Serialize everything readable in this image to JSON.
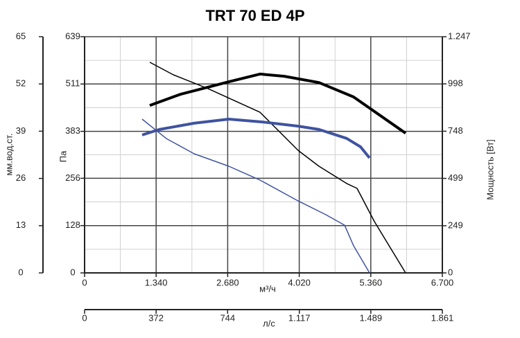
{
  "chart_data": {
    "type": "line",
    "title": "TRT 70 ED 4P",
    "xlabel": "м³/ч",
    "x2label": "л/с",
    "ylabel": "Па",
    "y2label": "Мощность [Вт]",
    "y3label": "мм.вод.ст.",
    "xlim": [
      0,
      6700
    ],
    "xticks": [
      0,
      {
        "value": 1340,
        "label": "1.340"
      },
      {
        "value": 2680,
        "label": "2.680"
      },
      {
        "value": 4020,
        "label": "4.020"
      },
      {
        "value": 5360,
        "label": "5.360"
      },
      {
        "value": 6700,
        "label": "6.700"
      }
    ],
    "x2lim": [
      0,
      1861
    ],
    "x2ticks": [
      0,
      372,
      744,
      {
        "value": 1117,
        "label": "1.117"
      },
      {
        "value": 1489,
        "label": "1.489"
      },
      {
        "value": 1861,
        "label": "1.861"
      }
    ],
    "ylim": [
      0,
      639
    ],
    "yticks": [
      0,
      128,
      256,
      383,
      511,
      639
    ],
    "y2lim": [
      0,
      1247
    ],
    "y2ticks": [
      0,
      249,
      499,
      748,
      998,
      {
        "value": 1247,
        "label": "1.247"
      }
    ],
    "y3lim": [
      0,
      65
    ],
    "y3ticks": [
      0,
      13,
      26,
      39,
      52,
      65
    ],
    "grid": true,
    "series": [
      {
        "color": "#000000",
        "line_width": 4,
        "axis": "y",
        "x": [
          1221,
          1792,
          2701,
          3285,
          3740,
          4389,
          5038,
          6012
        ],
        "values": [
          453,
          483,
          517,
          538,
          532,
          515,
          476,
          378
        ]
      },
      {
        "color": "#000000",
        "line_width": 1.5,
        "axis": "y2",
        "x": [
          1221,
          1662,
          2311,
          3285,
          3999,
          4389,
          4908,
          5103,
          5428,
          6012
        ],
        "values": [
          1112,
          1046,
          973,
          848,
          647,
          563,
          472,
          446,
          271,
          0
        ]
      },
      {
        "color": "#3f53a0",
        "line_width": 4,
        "axis": "y",
        "x": [
          1078,
          1402,
          2052,
          2701,
          3350,
          3999,
          4389,
          4908,
          5168,
          5337
        ],
        "values": [
          373,
          388,
          405,
          416,
          408,
          397,
          388,
          364,
          341,
          311
        ]
      },
      {
        "color": "#3f53a0",
        "line_width": 1.5,
        "axis": "y2",
        "x": [
          1078,
          1532,
          2052,
          2701,
          3285,
          3999,
          4518,
          4869,
          5038,
          5337
        ],
        "values": [
          812,
          709,
          629,
          563,
          490,
          380,
          307,
          252,
          143,
          0
        ]
      }
    ]
  }
}
